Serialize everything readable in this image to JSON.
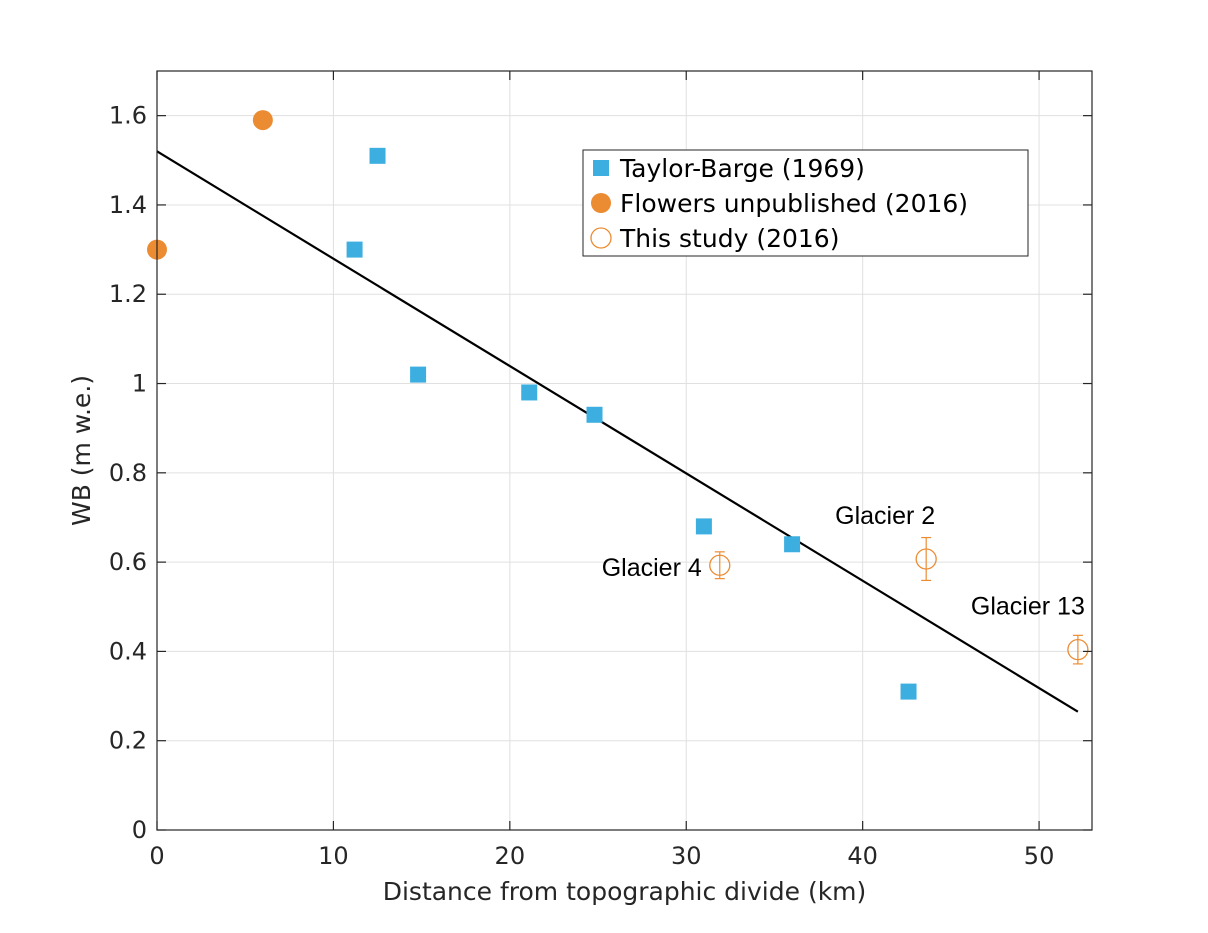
{
  "chart_data": {
    "type": "scatter",
    "xlabel": "Distance from topographic divide (km)",
    "ylabel": "WB (m w.e.)",
    "xlim": [
      0,
      53
    ],
    "ylim": [
      0,
      1.7
    ],
    "xticks": [
      0,
      10,
      20,
      30,
      40,
      50
    ],
    "yticks": [
      0,
      0.2,
      0.4,
      0.6,
      0.8,
      1,
      1.2,
      1.4,
      1.6
    ],
    "xtick_labels": [
      "0",
      "10",
      "20",
      "30",
      "40",
      "50"
    ],
    "ytick_labels": [
      "0",
      "0.2",
      "0.4",
      "0.6",
      "0.8",
      "1",
      "1.2",
      "1.4",
      "1.6"
    ],
    "grid": true,
    "legend_position": "top-right",
    "series": [
      {
        "name": "Taylor-Barge (1969)",
        "marker": "filled-square",
        "color": "#3daee0",
        "points": [
          {
            "x": 11.2,
            "y": 1.3
          },
          {
            "x": 12.5,
            "y": 1.51
          },
          {
            "x": 14.8,
            "y": 1.02
          },
          {
            "x": 21.1,
            "y": 0.98
          },
          {
            "x": 24.8,
            "y": 0.93
          },
          {
            "x": 31.0,
            "y": 0.68
          },
          {
            "x": 36.0,
            "y": 0.64
          },
          {
            "x": 42.6,
            "y": 0.31
          }
        ]
      },
      {
        "name": "Flowers unpublished (2016)",
        "marker": "filled-circle",
        "color": "#eb8c33",
        "points": [
          {
            "x": 0.0,
            "y": 1.3
          },
          {
            "x": 6.0,
            "y": 1.59
          }
        ]
      },
      {
        "name": "This study (2016)",
        "marker": "open-circle",
        "color": "#eb8c33",
        "points": [
          {
            "x": 31.9,
            "y": 0.593,
            "err": 0.03,
            "label": "Glacier 4"
          },
          {
            "x": 43.6,
            "y": 0.607,
            "err": 0.048,
            "label": "Glacier 2"
          },
          {
            "x": 52.2,
            "y": 0.404,
            "err": 0.032,
            "label": "Glacier 13"
          }
        ]
      }
    ],
    "fit_line": {
      "color": "#000000",
      "x": [
        0,
        52.2
      ],
      "y": [
        1.52,
        0.265
      ]
    }
  }
}
